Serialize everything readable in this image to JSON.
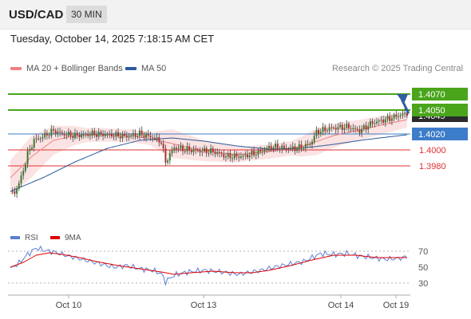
{
  "header": {
    "pair": "USD/CAD",
    "timeframe": "30 MIN"
  },
  "timestamp": "Tuesday, October 14, 2025 7:18:15 AM CET",
  "legend": {
    "ma20": {
      "label": "MA 20 + Bollinger Bands",
      "color": "#f08080"
    },
    "ma50": {
      "label": "MA 50",
      "color": "#2a5a9a"
    }
  },
  "credit": "Research © 2025 Trading Central",
  "rsi_legend": {
    "rsi": {
      "label": "RSI",
      "color": "#5b7fd6"
    },
    "ma9": {
      "label": "9MA",
      "color": "#e00000"
    }
  },
  "chart_data": [
    {
      "type": "line",
      "title": "USD/CAD 30 MIN",
      "ylim": [
        1.391,
        1.4088
      ],
      "x_ticks": [
        "Oct 10",
        "Oct 13",
        "Oct 14",
        "Oct 19"
      ],
      "levels": [
        {
          "value": 1.407,
          "label": "1.4070",
          "kind": "resistance",
          "color": "#4aa51c"
        },
        {
          "value": 1.405,
          "label": "1.4050",
          "kind": "resistance",
          "color": "#4aa51c"
        },
        {
          "value": 1.402,
          "label": "1.4020",
          "kind": "pivot",
          "color": "#3d7cc9"
        },
        {
          "value": 1.4,
          "label": "1.4000",
          "kind": "support",
          "color": "#e03030"
        },
        {
          "value": 1.398,
          "label": "1.3980",
          "kind": "support",
          "color": "#e03030"
        }
      ],
      "current_price": {
        "value": 1.4045,
        "label": "1.4045"
      },
      "forecast": {
        "from": 1.4046,
        "to": 1.407,
        "direction": "up"
      },
      "price_anchors": [
        [
          0,
          1.3948
        ],
        [
          2,
          1.3946
        ],
        [
          5,
          1.3965
        ],
        [
          8,
          1.3995
        ],
        [
          11,
          1.4012
        ],
        [
          16,
          1.4018
        ],
        [
          20,
          1.4024
        ],
        [
          24,
          1.402
        ],
        [
          30,
          1.4018
        ],
        [
          38,
          1.402
        ],
        [
          46,
          1.4019
        ],
        [
          54,
          1.4017
        ],
        [
          60,
          1.402
        ],
        [
          66,
          1.4016
        ],
        [
          70,
          1.401
        ],
        [
          72,
          1.3985
        ],
        [
          76,
          1.4003
        ],
        [
          80,
          1.4001
        ],
        [
          86,
          1.3999
        ],
        [
          94,
          1.3998
        ],
        [
          100,
          1.3992
        ],
        [
          108,
          1.3992
        ],
        [
          115,
          1.3997
        ],
        [
          121,
          1.4004
        ],
        [
          128,
          1.4002
        ],
        [
          133,
          1.4002
        ],
        [
          139,
          1.4007
        ],
        [
          142,
          1.4022
        ],
        [
          148,
          1.4027
        ],
        [
          156,
          1.4029
        ],
        [
          162,
          1.4024
        ],
        [
          168,
          1.4034
        ],
        [
          174,
          1.4038
        ],
        [
          180,
          1.4043
        ],
        [
          184,
          1.4046
        ]
      ],
      "ma20_anchors": [
        [
          0,
          1.3965
        ],
        [
          10,
          1.3992
        ],
        [
          20,
          1.4012
        ],
        [
          30,
          1.4018
        ],
        [
          40,
          1.4019
        ],
        [
          55,
          1.4018
        ],
        [
          65,
          1.4014
        ],
        [
          75,
          1.4008
        ],
        [
          90,
          1.3999
        ],
        [
          105,
          1.3994
        ],
        [
          120,
          1.3998
        ],
        [
          135,
          1.4004
        ],
        [
          150,
          1.4018
        ],
        [
          165,
          1.4027
        ],
        [
          184,
          1.4038
        ]
      ],
      "ma50_anchors": [
        [
          0,
          1.3948
        ],
        [
          15,
          1.3965
        ],
        [
          30,
          1.3985
        ],
        [
          45,
          1.4002
        ],
        [
          60,
          1.4012
        ],
        [
          75,
          1.4015
        ],
        [
          90,
          1.4011
        ],
        [
          105,
          1.4005
        ],
        [
          120,
          1.4001
        ],
        [
          135,
          1.4002
        ],
        [
          150,
          1.4007
        ],
        [
          165,
          1.4013
        ],
        [
          184,
          1.4019
        ]
      ],
      "band_half_width_anchors": [
        [
          0,
          0.0022
        ],
        [
          10,
          0.0026
        ],
        [
          20,
          0.0018
        ],
        [
          35,
          0.0009
        ],
        [
          50,
          0.0008
        ],
        [
          65,
          0.0008
        ],
        [
          75,
          0.0018
        ],
        [
          90,
          0.0013
        ],
        [
          110,
          0.0009
        ],
        [
          130,
          0.0009
        ],
        [
          142,
          0.0017
        ],
        [
          160,
          0.0013
        ],
        [
          184,
          0.001
        ]
      ]
    },
    {
      "type": "line",
      "title": "RSI",
      "ylim": [
        20,
        80
      ],
      "y_ticks": [
        70,
        50,
        30
      ],
      "reference_lines": [
        70,
        30
      ],
      "rsi_anchors": [
        [
          0,
          48
        ],
        [
          4,
          55
        ],
        [
          8,
          66
        ],
        [
          12,
          74
        ],
        [
          16,
          71
        ],
        [
          20,
          69
        ],
        [
          24,
          66
        ],
        [
          30,
          62
        ],
        [
          36,
          58
        ],
        [
          42,
          54
        ],
        [
          48,
          50
        ],
        [
          54,
          52
        ],
        [
          60,
          48
        ],
        [
          66,
          46
        ],
        [
          70,
          42
        ],
        [
          72,
          32
        ],
        [
          76,
          40
        ],
        [
          82,
          44
        ],
        [
          90,
          46
        ],
        [
          98,
          44
        ],
        [
          106,
          41
        ],
        [
          112,
          44
        ],
        [
          118,
          47
        ],
        [
          124,
          51
        ],
        [
          130,
          54
        ],
        [
          136,
          57
        ],
        [
          140,
          62
        ],
        [
          144,
          67
        ],
        [
          150,
          66
        ],
        [
          156,
          67
        ],
        [
          162,
          64
        ],
        [
          168,
          62
        ],
        [
          174,
          60
        ],
        [
          180,
          61
        ],
        [
          184,
          63
        ]
      ],
      "ma9_anchors": [
        [
          0,
          50
        ],
        [
          6,
          56
        ],
        [
          12,
          65
        ],
        [
          18,
          68
        ],
        [
          24,
          66
        ],
        [
          32,
          62
        ],
        [
          40,
          57
        ],
        [
          50,
          52
        ],
        [
          60,
          48
        ],
        [
          70,
          44
        ],
        [
          76,
          41
        ],
        [
          84,
          43
        ],
        [
          94,
          45
        ],
        [
          104,
          43
        ],
        [
          112,
          43
        ],
        [
          120,
          46
        ],
        [
          130,
          52
        ],
        [
          140,
          59
        ],
        [
          150,
          65
        ],
        [
          160,
          65
        ],
        [
          170,
          62
        ],
        [
          184,
          62
        ]
      ]
    }
  ]
}
